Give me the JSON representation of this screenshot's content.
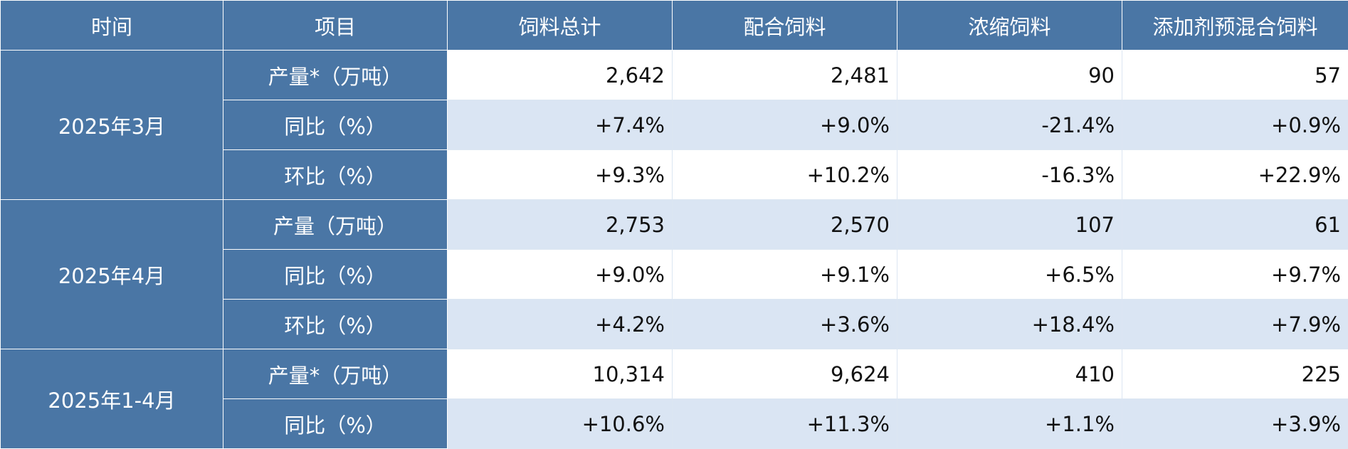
{
  "table": {
    "columns": [
      "时间",
      "项目",
      "饲料总计",
      "配合饲料",
      "浓缩饲料",
      "添加剂预混合饲料"
    ],
    "groups": [
      {
        "period": "2025年3月",
        "rows": [
          {
            "item": "产量*（万吨）",
            "values": [
              "2,642",
              "2,481",
              "90",
              "57"
            ]
          },
          {
            "item": "同比（%）",
            "values": [
              "+7.4%",
              "+9.0%",
              "-21.4%",
              "+0.9%"
            ]
          },
          {
            "item": "环比（%）",
            "values": [
              "+9.3%",
              "+10.2%",
              "-16.3%",
              "+22.9%"
            ]
          }
        ]
      },
      {
        "period": "2025年4月",
        "rows": [
          {
            "item": "产量（万吨）",
            "values": [
              "2,753",
              "2,570",
              "107",
              "61"
            ]
          },
          {
            "item": "同比（%）",
            "values": [
              "+9.0%",
              "+9.1%",
              "+6.5%",
              "+9.7%"
            ]
          },
          {
            "item": "环比（%）",
            "values": [
              "+4.2%",
              "+3.6%",
              "+18.4%",
              "+7.9%"
            ]
          }
        ]
      },
      {
        "period": "2025年1-4月",
        "rows": [
          {
            "item": "产量*（万吨）",
            "values": [
              "10,314",
              "9,624",
              "410",
              "225"
            ]
          },
          {
            "item": "同比（%）",
            "values": [
              "+10.6%",
              "+11.3%",
              "+1.1%",
              "+3.9%"
            ]
          }
        ]
      }
    ]
  }
}
